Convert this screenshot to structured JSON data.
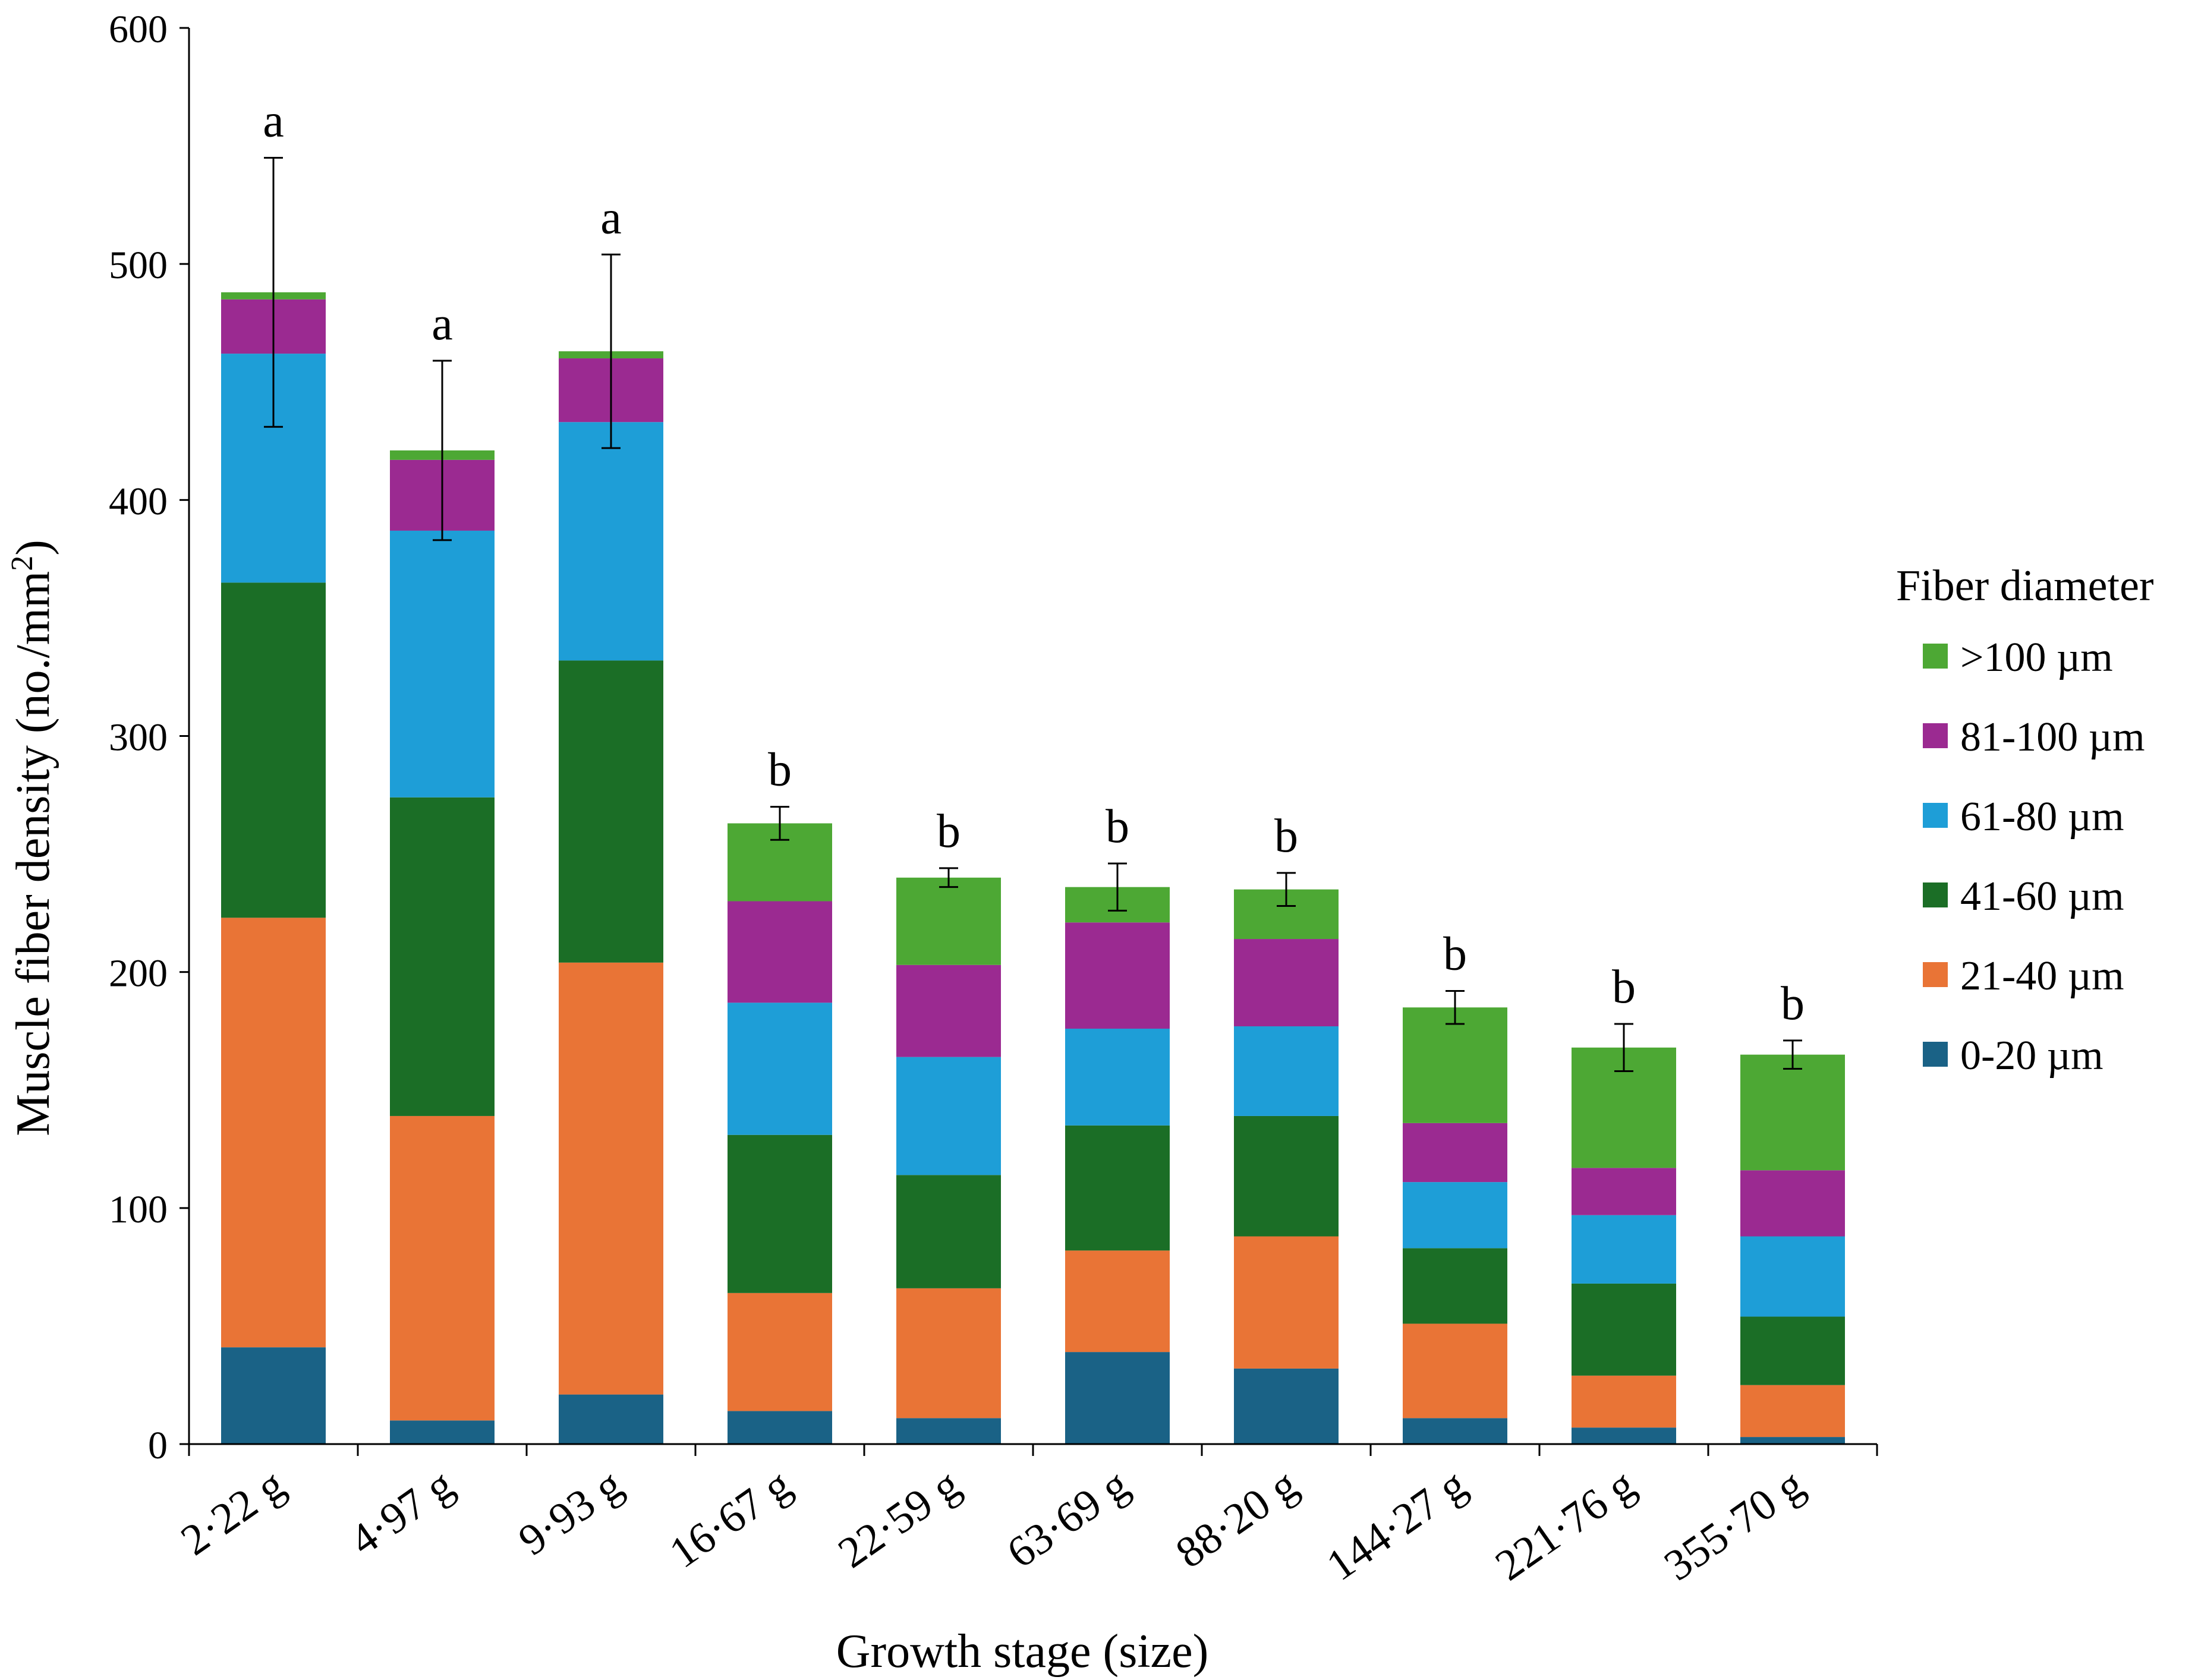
{
  "chart_data": {
    "type": "bar",
    "stacked": true,
    "xlabel": "Growth stage (size)",
    "ylabel_main": "Muscle fiber density (no./mm",
    "ylabel_sup": "2",
    "ylabel_end": ")",
    "ylim": [
      0,
      600
    ],
    "yticks": [
      0,
      100,
      200,
      300,
      400,
      500,
      600
    ],
    "grid": false,
    "legend_position": "right",
    "legend_title": "Fiber diameter",
    "categories": [
      "2·22 g",
      "4·97 g",
      "9·93 g",
      "16·67 g",
      "22·59 g",
      "63·69 g",
      "88·20 g",
      "144·27 g",
      "221·76 g",
      "355·70 g"
    ],
    "series": [
      {
        "name": "0-20 µm",
        "color": "#1a6286",
        "values": [
          41,
          10,
          21,
          14,
          11,
          39,
          32,
          11,
          7,
          3
        ]
      },
      {
        "name": "21-40 µm",
        "color": "#e97436",
        "values": [
          182,
          129,
          183,
          50,
          55,
          43,
          56,
          40,
          22,
          22
        ]
      },
      {
        "name": "41-60 µm",
        "color": "#1b6e26",
        "values": [
          142,
          135,
          128,
          67,
          48,
          53,
          51,
          32,
          39,
          29
        ]
      },
      {
        "name": "61-80 µm",
        "color": "#1e9ed7",
        "values": [
          97,
          113,
          101,
          56,
          50,
          41,
          38,
          28,
          29,
          34
        ]
      },
      {
        "name": "81-100 µm",
        "color": "#9b2a91",
        "values": [
          23,
          30,
          27,
          43,
          39,
          45,
          37,
          25,
          20,
          28
        ]
      },
      {
        "name": ">100 µm",
        "color": "#4da834",
        "values": [
          3,
          4,
          3,
          33,
          37,
          15,
          21,
          49,
          51,
          49
        ]
      }
    ],
    "error_bars": [
      57,
      38,
      41,
      7,
      4,
      10,
      7,
      7,
      10,
      6
    ],
    "annotations": [
      "a",
      "a",
      "a",
      "b",
      "b",
      "b",
      "b",
      "b",
      "b",
      "b"
    ]
  }
}
